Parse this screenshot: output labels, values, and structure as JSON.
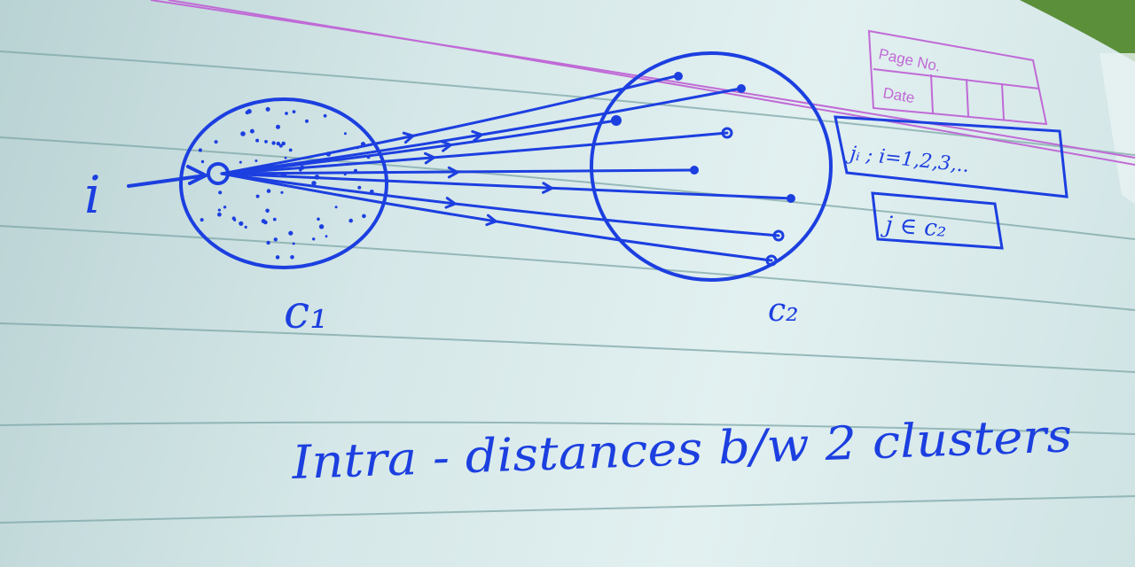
{
  "page_stamp": {
    "page_no_label": "Page No.",
    "date_label": "Date"
  },
  "diagram": {
    "point_label": "i",
    "cluster1_label": "c₁",
    "cluster2_label": "c₂",
    "note_index": "jᵢ ; i=1,2,3,..",
    "note_membership": "j ∈ c₂",
    "caption": "Intra - distances b/w 2 clusters"
  },
  "colors": {
    "ink": "#1c3fe0",
    "stamp": "#c06ad6",
    "paper": "#d5e7e8",
    "ruled_line": "#7fa7a8"
  }
}
